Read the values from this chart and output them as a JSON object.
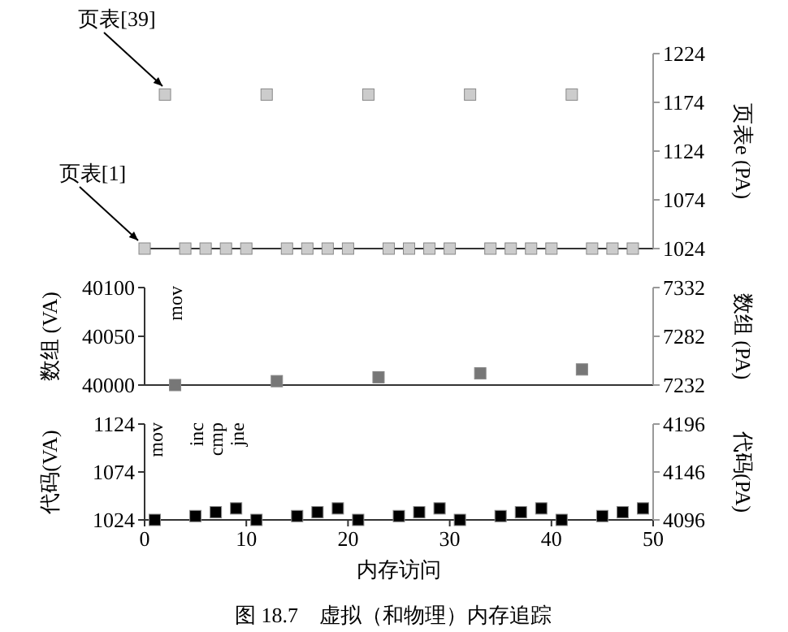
{
  "chart_data": [
    {
      "type": "scatter",
      "marker": "square",
      "xlim": [
        0,
        50
      ],
      "tick_labels": "y",
      "y2lim": [
        1024,
        1224
      ],
      "y2ticks": [
        1024,
        1074,
        1124,
        1174,
        1224
      ],
      "y2label": "页表e (PA)",
      "series": [
        {
          "color": "#cccccc",
          "axis": "y2",
          "x": [
            0,
            2,
            4,
            6,
            8,
            10,
            12,
            14,
            16,
            18,
            20,
            22,
            24,
            26,
            28,
            30,
            32,
            34,
            36,
            38,
            40,
            42,
            44,
            46,
            48
          ],
          "values": [
            1024,
            1182,
            1024,
            1024,
            1024,
            1024,
            1182,
            1024,
            1024,
            1024,
            1024,
            1182,
            1024,
            1024,
            1024,
            1024,
            1182,
            1024,
            1024,
            1024,
            1024,
            1182,
            1024,
            1024,
            1024
          ]
        }
      ],
      "annotations": [
        "页表[39]",
        "页表[1]"
      ]
    },
    {
      "type": "scatter",
      "marker": "square",
      "xlim": [
        0,
        50
      ],
      "tick_labels": "y",
      "ylim": [
        40000,
        40100
      ],
      "yticks": [
        40000,
        40050,
        40100
      ],
      "ylabel": "数组 (VA)",
      "y2lim": [
        7232,
        7332
      ],
      "y2ticks": [
        7232,
        7282,
        7332
      ],
      "y2label": "数组 (PA)",
      "series": [
        {
          "color": "#777777",
          "x": [
            3,
            13,
            23,
            33,
            43
          ],
          "values": [
            40000,
            40004,
            40008,
            40012,
            40016
          ]
        }
      ],
      "annotations": [
        "mov"
      ]
    },
    {
      "type": "scatter",
      "marker": "square",
      "xlim": [
        0,
        50
      ],
      "xticks": [
        0,
        10,
        20,
        30,
        40,
        50
      ],
      "xlabel": "内存访问",
      "ylim": [
        1024,
        1124
      ],
      "yticks": [
        1024,
        1074,
        1124
      ],
      "ylabel": "代码(VA)",
      "y2lim": [
        4096,
        4196
      ],
      "y2ticks": [
        4096,
        4146,
        4196
      ],
      "y2label": "代码(PA)",
      "series": [
        {
          "color": "#000000",
          "x": [
            1,
            5,
            7,
            9,
            11,
            15,
            17,
            19,
            21,
            25,
            27,
            29,
            31,
            35,
            37,
            39,
            41,
            45,
            47,
            49
          ],
          "values": [
            1024,
            1028,
            1032,
            1036,
            1024,
            1028,
            1032,
            1036,
            1024,
            1028,
            1032,
            1036,
            1024,
            1028,
            1032,
            1036,
            1024,
            1028,
            1032,
            1036
          ]
        }
      ],
      "annotations": [
        "mov",
        "inc",
        "cmp",
        "jne",
        "图 18.7　虚拟（和物理）内存追踪"
      ]
    }
  ]
}
